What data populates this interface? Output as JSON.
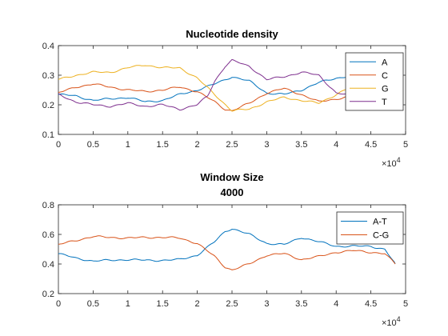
{
  "chart_data": [
    {
      "type": "line",
      "title": "Nucleotide density",
      "xlim": [
        0,
        50000
      ],
      "ylim": [
        0.1,
        0.4
      ],
      "xticks": [
        0,
        0.5,
        1,
        1.5,
        2,
        2.5,
        3,
        3.5,
        4,
        4.5,
        5
      ],
      "yticks": [
        0.1,
        0.2,
        0.3,
        0.4
      ],
      "x_multiplier": "×10",
      "x_multiplier_exp": "4",
      "legend": "top-right",
      "grid": false,
      "series": [
        {
          "name": "A",
          "color": "#0072BD",
          "x": [
            0,
            2500,
            5000,
            7500,
            10000,
            12500,
            15000,
            17500,
            20000,
            22500,
            25000,
            27500,
            30000,
            32500,
            35000,
            37500,
            40000,
            42500,
            45000,
            48500
          ],
          "y": [
            0.235,
            0.23,
            0.215,
            0.22,
            0.225,
            0.21,
            0.215,
            0.235,
            0.25,
            0.27,
            0.295,
            0.28,
            0.24,
            0.235,
            0.25,
            0.275,
            0.29,
            0.3,
            0.295,
            0.295
          ]
        },
        {
          "name": "C",
          "color": "#D95319",
          "x": [
            0,
            2500,
            5000,
            7500,
            10000,
            12500,
            15000,
            17500,
            20000,
            22500,
            24000,
            25000,
            27500,
            30000,
            32500,
            35000,
            37500,
            40000,
            42500,
            45000,
            48500
          ],
          "y": [
            0.24,
            0.26,
            0.27,
            0.26,
            0.25,
            0.245,
            0.25,
            0.26,
            0.245,
            0.21,
            0.185,
            0.18,
            0.205,
            0.24,
            0.255,
            0.235,
            0.21,
            0.22,
            0.23,
            0.22,
            0.215
          ]
        },
        {
          "name": "G",
          "color": "#EDB120",
          "x": [
            0,
            2500,
            5000,
            7500,
            10000,
            12500,
            15000,
            17500,
            20000,
            22500,
            25000,
            27500,
            30000,
            32500,
            35000,
            37500,
            40000,
            42500,
            45000,
            48500
          ],
          "y": [
            0.285,
            0.3,
            0.31,
            0.31,
            0.325,
            0.335,
            0.325,
            0.325,
            0.29,
            0.235,
            0.18,
            0.185,
            0.21,
            0.225,
            0.215,
            0.205,
            0.235,
            0.265,
            0.26,
            0.26
          ]
        },
        {
          "name": "T",
          "color": "#7E2F8E",
          "x": [
            0,
            2500,
            5000,
            7500,
            10000,
            12500,
            15000,
            17500,
            20000,
            21500,
            22500,
            24000,
            25000,
            27500,
            30000,
            32500,
            35000,
            37500,
            40000,
            42500,
            45000,
            48500
          ],
          "y": [
            0.235,
            0.21,
            0.2,
            0.195,
            0.205,
            0.195,
            0.2,
            0.185,
            0.2,
            0.23,
            0.28,
            0.33,
            0.35,
            0.33,
            0.285,
            0.295,
            0.31,
            0.3,
            0.24,
            0.23,
            0.23,
            0.225
          ]
        }
      ]
    },
    {
      "type": "line",
      "title": [
        "Window Size",
        "4000"
      ],
      "xlim": [
        0,
        50000
      ],
      "ylim": [
        0.2,
        0.8
      ],
      "xticks": [
        0,
        0.5,
        1,
        1.5,
        2,
        2.5,
        3,
        3.5,
        4,
        4.5,
        5
      ],
      "yticks": [
        0.2,
        0.4,
        0.6,
        0.8
      ],
      "x_multiplier": "×10",
      "x_multiplier_exp": "4",
      "legend": "top-right",
      "grid": false,
      "series": [
        {
          "name": "A-T",
          "color": "#0072BD",
          "x": [
            0,
            2500,
            5000,
            7500,
            10000,
            12500,
            15000,
            17500,
            20000,
            22500,
            24000,
            25000,
            27500,
            30000,
            32500,
            35000,
            37500,
            40000,
            42500,
            45000,
            47000,
            48500
          ],
          "y": [
            0.47,
            0.44,
            0.42,
            0.425,
            0.43,
            0.425,
            0.425,
            0.43,
            0.46,
            0.55,
            0.62,
            0.64,
            0.6,
            0.54,
            0.53,
            0.58,
            0.55,
            0.52,
            0.52,
            0.52,
            0.5,
            0.4
          ]
        },
        {
          "name": "C-G",
          "color": "#D95319",
          "x": [
            0,
            2500,
            5000,
            7500,
            10000,
            12500,
            15000,
            17500,
            20000,
            22500,
            24000,
            25000,
            27500,
            30000,
            32500,
            35000,
            37500,
            40000,
            42500,
            45000,
            47000,
            48500
          ],
          "y": [
            0.53,
            0.56,
            0.585,
            0.58,
            0.575,
            0.58,
            0.58,
            0.575,
            0.54,
            0.45,
            0.38,
            0.36,
            0.4,
            0.46,
            0.47,
            0.43,
            0.45,
            0.48,
            0.49,
            0.48,
            0.47,
            0.4
          ]
        }
      ]
    }
  ]
}
